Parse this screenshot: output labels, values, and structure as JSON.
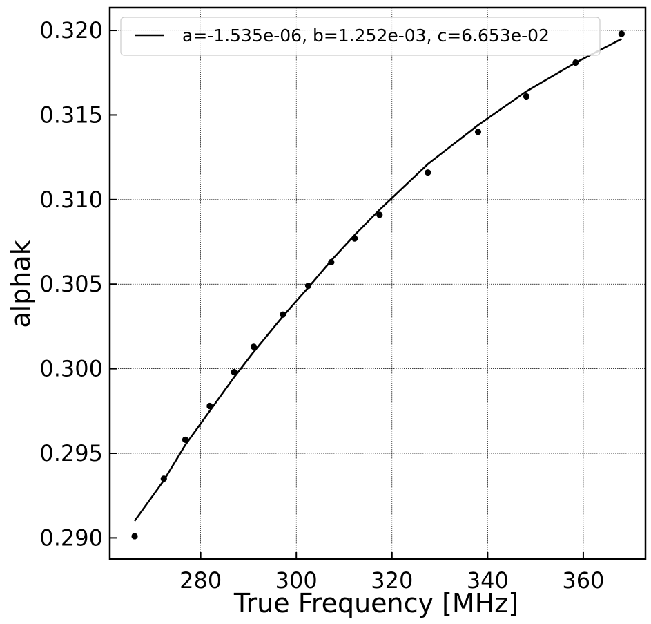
{
  "chart_data": {
    "type": "scatter",
    "xlabel": "True Frequency [MHz]",
    "ylabel": "alphak",
    "xlim": [
      261,
      373
    ],
    "ylim": [
      0.28875,
      0.32135
    ],
    "x_ticks": [
      280,
      300,
      320,
      340,
      360
    ],
    "y_ticks": [
      0.29,
      0.295,
      0.3,
      0.305,
      0.31,
      0.315,
      0.32
    ],
    "x_tick_labels": [
      "280",
      "300",
      "320",
      "340",
      "360"
    ],
    "y_tick_labels": [
      "0.290",
      "0.295",
      "0.300",
      "0.305",
      "0.310",
      "0.315",
      "0.320"
    ],
    "grid": true,
    "legend_position": "top",
    "series": [
      {
        "kind": "points",
        "marker": "circle",
        "color": "#000000",
        "x": [
          266.2,
          272.3,
          276.8,
          281.9,
          287.0,
          291.1,
          297.2,
          302.5,
          307.3,
          312.2,
          317.4,
          327.5,
          338.0,
          348.1,
          358.4,
          368.0
        ],
        "y": [
          0.2901,
          0.2935,
          0.2958,
          0.2978,
          0.2998,
          0.3013,
          0.3032,
          0.3049,
          0.3063,
          0.3077,
          0.3091,
          0.3116,
          0.314,
          0.3161,
          0.3181,
          0.3198
        ]
      },
      {
        "kind": "line",
        "name": "a=-1.535e-06, b=1.252e-03, c=6.653e-02",
        "color": "#000000",
        "x": [
          266.2,
          272.3,
          276.8,
          281.9,
          287.0,
          291.1,
          297.2,
          302.5,
          307.3,
          312.2,
          317.4,
          327.5,
          338.0,
          348.1,
          358.4,
          368.0
        ],
        "y": [
          0.291,
          0.2934,
          0.2955,
          0.2975,
          0.2995,
          0.301,
          0.3031,
          0.3048,
          0.3064,
          0.3079,
          0.3094,
          0.3121,
          0.3144,
          0.3164,
          0.3181,
          0.3195
        ]
      }
    ]
  }
}
